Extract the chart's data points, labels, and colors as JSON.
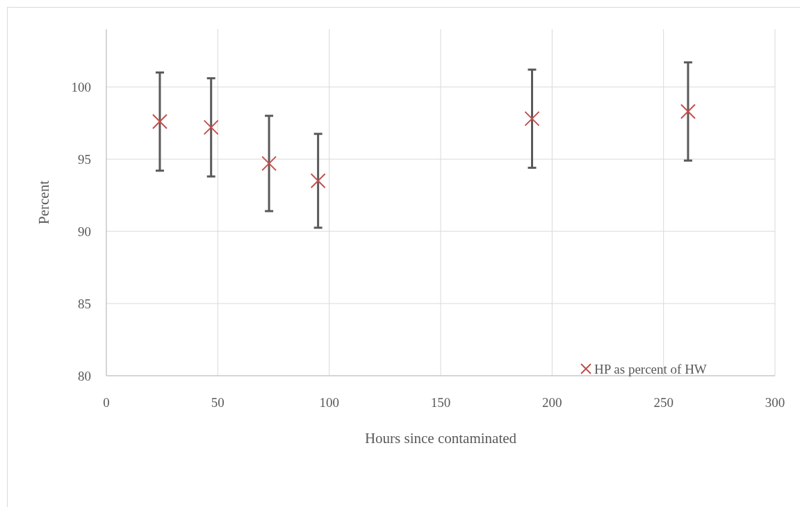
{
  "chart_data": {
    "type": "scatter",
    "xlabel": "Hours since contaminated",
    "ylabel": "Percent",
    "x": [
      24,
      47,
      73,
      95,
      191,
      261
    ],
    "series": [
      {
        "name": "HP as percent of HW",
        "color": "#c0504d",
        "values": [
          97.6,
          97.2,
          94.7,
          93.5,
          97.8,
          98.3
        ],
        "errors": [
          3.4,
          3.4,
          3.3,
          3.25,
          3.4,
          3.4
        ]
      }
    ],
    "xlim": [
      0,
      300
    ],
    "xticks": [
      0,
      50,
      100,
      150,
      200,
      250,
      300
    ],
    "ylim": [
      80,
      104
    ],
    "yticks": [
      80,
      85,
      90,
      95,
      100
    ],
    "grid": true,
    "legend": "bottom right",
    "marker": "cross"
  }
}
